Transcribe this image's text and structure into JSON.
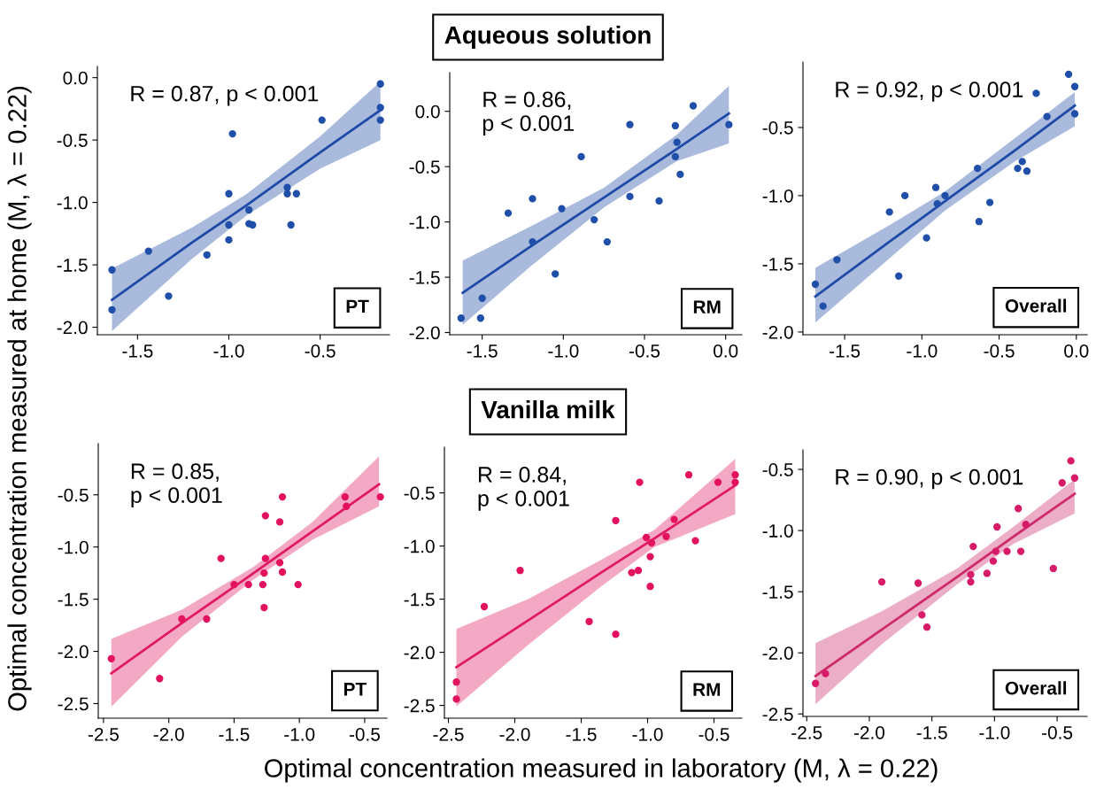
{
  "chart_data": [
    {
      "type": "scatter",
      "ylabel": "Optimal concentration measured at home (M, λ = 0.22)",
      "annotations": [
        "R = 0.87, p < 0.001",
        "PT"
      ],
      "grid": false,
      "legend": false,
      "xlim": [
        -1.72,
        -0.12
      ],
      "xticks": [
        {
          "value": -1.5,
          "label": "-1.5"
        },
        {
          "value": -1.0,
          "label": "-1.0"
        },
        {
          "value": -0.5,
          "label": "-0.5"
        }
      ],
      "ylim": [
        -2.06,
        0.09
      ],
      "yticks": [
        {
          "value": -2.0,
          "label": "-2.0"
        },
        {
          "value": -1.5,
          "label": "-1.5"
        },
        {
          "value": -1.0,
          "label": "-1.0"
        },
        {
          "value": -0.5,
          "label": "-0.5"
        },
        {
          "value": 0.0,
          "label": "0.0"
        }
      ],
      "series": [
        {
          "marker": "circle",
          "color": "#1f4fa8",
          "x": [
            -1.64,
            -1.64,
            -1.44,
            -1.33,
            -1.12,
            -1.0,
            -1.0,
            -1.0,
            -0.98,
            -0.89,
            -0.89,
            -0.87,
            -0.68,
            -0.68,
            -0.66,
            -0.63,
            -0.49,
            -0.17,
            -0.17,
            -0.17
          ],
          "values": [
            -1.54,
            -1.86,
            -1.39,
            -1.75,
            -1.42,
            -0.93,
            -1.18,
            -1.3,
            -0.45,
            -1.06,
            -1.17,
            -1.18,
            -0.88,
            -0.93,
            -1.18,
            -0.93,
            -0.34,
            -0.05,
            -0.24,
            -0.34
          ]
        },
        {
          "type": "line",
          "color": "#1d4aa6",
          "x": [
            -1.64,
            -1.2,
            -0.9,
            -0.5,
            -0.17
          ],
          "values": [
            -1.78,
            -1.32,
            -1.02,
            -0.6,
            -0.26
          ],
          "lower": [
            -2.03,
            -1.45,
            -1.1,
            -0.73,
            -0.5
          ],
          "upper": [
            -1.53,
            -1.2,
            -0.93,
            -0.47,
            -0.03
          ]
        }
      ]
    },
    {
      "type": "scatter",
      "title": "Aqueous solution",
      "annotations": [
        "R = 0.86,\np < 0.001",
        "RM"
      ],
      "grid": false,
      "legend": false,
      "xlim": [
        -1.7,
        0.1
      ],
      "xticks": [
        {
          "value": -1.5,
          "label": "-1.5"
        },
        {
          "value": -1.0,
          "label": "-1.0"
        },
        {
          "value": -0.5,
          "label": "-0.5"
        },
        {
          "value": 0.0,
          "label": "0.0"
        }
      ],
      "ylim": [
        -2.02,
        0.35
      ],
      "yticks": [
        {
          "value": -2.0,
          "label": "-2.0"
        },
        {
          "value": -1.5,
          "label": "-1.5"
        },
        {
          "value": -1.0,
          "label": "-1.0"
        },
        {
          "value": -0.5,
          "label": "-0.5"
        },
        {
          "value": 0.0,
          "label": "0.0"
        }
      ],
      "series": [
        {
          "marker": "circle",
          "color": "#1f4fa8",
          "x": [
            -1.63,
            -1.51,
            -1.5,
            -1.34,
            -1.19,
            -1.19,
            -1.05,
            -1.01,
            -0.89,
            -0.81,
            -0.73,
            -0.59,
            -0.59,
            -0.41,
            -0.31,
            -0.31,
            -0.3,
            -0.28,
            -0.2,
            0.02
          ],
          "values": [
            -1.87,
            -1.87,
            -1.69,
            -0.92,
            -0.79,
            -1.18,
            -1.47,
            -0.88,
            -0.41,
            -0.98,
            -1.18,
            -0.12,
            -0.77,
            -0.81,
            -0.41,
            -0.13,
            -0.28,
            -0.57,
            0.05,
            -0.12
          ]
        },
        {
          "type": "line",
          "color": "#1d4aa6",
          "x": [
            -1.62,
            -1.2,
            -0.75,
            -0.3,
            0.02
          ],
          "values": [
            -1.64,
            -1.22,
            -0.78,
            -0.34,
            -0.02
          ],
          "lower": [
            -1.93,
            -1.4,
            -0.87,
            -0.45,
            -0.29
          ],
          "upper": [
            -1.35,
            -1.04,
            -0.69,
            -0.21,
            0.23
          ]
        }
      ]
    },
    {
      "type": "scatter",
      "annotations": [
        "R = 0.92, p < 0.001",
        "Overall"
      ],
      "grid": false,
      "legend": false,
      "xlim": [
        -1.77,
        0.07
      ],
      "xticks": [
        {
          "value": -1.5,
          "label": "-1.5"
        },
        {
          "value": -1.0,
          "label": "-1.0"
        },
        {
          "value": -0.5,
          "label": "-0.5"
        },
        {
          "value": 0.0,
          "label": "0.0"
        }
      ],
      "ylim": [
        -2.02,
        -0.02
      ],
      "yticks": [
        {
          "value": -2.0,
          "label": "-2.0"
        },
        {
          "value": -1.5,
          "label": "-1.5"
        },
        {
          "value": -1.0,
          "label": "-1.0"
        },
        {
          "value": -0.5,
          "label": "-0.5"
        }
      ],
      "series": [
        {
          "marker": "circle",
          "color": "#1f4fa8",
          "x": [
            -1.69,
            -1.64,
            -1.55,
            -1.21,
            -1.15,
            -1.11,
            -0.97,
            -0.91,
            -0.9,
            -0.85,
            -0.64,
            -0.63,
            -0.56,
            -0.38,
            -0.35,
            -0.32,
            -0.26,
            -0.19,
            -0.05,
            -0.01,
            -0.01
          ],
          "values": [
            -1.65,
            -1.81,
            -1.47,
            -1.12,
            -1.59,
            -1.0,
            -1.31,
            -0.94,
            -1.06,
            -1.0,
            -0.8,
            -1.19,
            -1.05,
            -0.8,
            -0.75,
            -0.82,
            -0.25,
            -0.42,
            -0.11,
            -0.2,
            -0.4
          ]
        },
        {
          "type": "line",
          "color": "#1d4aa6",
          "x": [
            -1.69,
            -1.2,
            -0.85,
            -0.4,
            -0.01
          ],
          "values": [
            -1.74,
            -1.33,
            -1.04,
            -0.67,
            -0.34
          ],
          "lower": [
            -1.93,
            -1.45,
            -1.11,
            -0.75,
            -0.49
          ],
          "upper": [
            -1.53,
            -1.21,
            -0.97,
            -0.58,
            -0.24
          ]
        }
      ]
    },
    {
      "type": "scatter",
      "annotations": [
        "R = 0.85,\np < 0.001",
        "PT"
      ],
      "grid": false,
      "legend": false,
      "xlim": [
        -2.54,
        -0.33
      ],
      "xticks": [
        {
          "value": -2.5,
          "label": "-2.5"
        },
        {
          "value": -2.0,
          "label": "-2.0"
        },
        {
          "value": -1.5,
          "label": "-1.5"
        },
        {
          "value": -1.0,
          "label": "-1.0"
        },
        {
          "value": -0.5,
          "label": "-0.5"
        }
      ],
      "ylim": [
        -2.64,
        -0.01
      ],
      "yticks": [
        {
          "value": -2.5,
          "label": "-2.5"
        },
        {
          "value": -2.0,
          "label": "-2.0"
        },
        {
          "value": -1.5,
          "label": "-1.5"
        },
        {
          "value": -1.0,
          "label": "-1.0"
        },
        {
          "value": -0.5,
          "label": "-0.5"
        }
      ],
      "series": [
        {
          "marker": "circle",
          "color": "#e3125f",
          "x": [
            -2.44,
            -2.07,
            -1.9,
            -1.71,
            -1.6,
            -1.5,
            -1.39,
            -1.28,
            -1.27,
            -1.27,
            -1.26,
            -1.26,
            -1.15,
            -1.15,
            -1.13,
            -1.13,
            -1.01,
            -0.65,
            -0.64,
            -0.38
          ],
          "values": [
            -2.07,
            -2.26,
            -1.69,
            -1.69,
            -1.11,
            -1.36,
            -1.36,
            -1.36,
            -1.58,
            -1.25,
            -1.11,
            -0.7,
            -1.15,
            -0.76,
            -0.52,
            -1.24,
            -1.36,
            -0.52,
            -0.61,
            -0.52
          ]
        },
        {
          "type": "line",
          "color": "#e01a62",
          "x": [
            -2.44,
            -1.9,
            -1.35,
            -0.9,
            -0.39
          ],
          "values": [
            -2.21,
            -1.73,
            -1.25,
            -0.85,
            -0.4
          ],
          "lower": [
            -2.53,
            -1.86,
            -1.31,
            -0.93,
            -0.61
          ],
          "upper": [
            -1.88,
            -1.6,
            -1.19,
            -0.76,
            -0.13
          ]
        }
      ]
    },
    {
      "type": "scatter",
      "title": "Vanilla milk",
      "xlabel": "Optimal concentration measured in laboratory (M, λ = 0.22)",
      "annotations": [
        "R = 0.84,\np < 0.001",
        "RM"
      ],
      "grid": false,
      "legend": false,
      "xlim": [
        -2.53,
        -0.29
      ],
      "xticks": [
        {
          "value": -2.5,
          "label": "-2.5"
        },
        {
          "value": -2.0,
          "label": "-2.0"
        },
        {
          "value": -1.5,
          "label": "-1.5"
        },
        {
          "value": -1.0,
          "label": "-1.0"
        },
        {
          "value": -0.5,
          "label": "-0.5"
        }
      ],
      "ylim": [
        -2.62,
        -0.07
      ],
      "yticks": [
        {
          "value": -2.5,
          "label": "-2.5"
        },
        {
          "value": -2.0,
          "label": "-2.0"
        },
        {
          "value": -1.5,
          "label": "-1.5"
        },
        {
          "value": -1.0,
          "label": "-1.0"
        },
        {
          "value": -0.5,
          "label": "-0.5"
        }
      ],
      "series": [
        {
          "marker": "circle",
          "color": "#e3125f",
          "x": [
            -2.44,
            -2.44,
            -2.23,
            -1.96,
            -1.44,
            -1.24,
            -1.24,
            -1.12,
            -1.07,
            -1.06,
            -1.01,
            -0.98,
            -0.98,
            -0.97,
            -0.86,
            -0.8,
            -0.69,
            -0.64,
            -0.47,
            -0.34,
            -0.34
          ],
          "values": [
            -2.28,
            -2.44,
            -1.57,
            -1.23,
            -1.71,
            -0.76,
            -1.83,
            -1.25,
            -1.23,
            -0.4,
            -0.92,
            -1.1,
            -1.38,
            -0.97,
            -0.91,
            -0.75,
            -0.33,
            -0.95,
            -0.4,
            -0.33,
            -0.4
          ]
        },
        {
          "type": "line",
          "color": "#e01a62",
          "x": [
            -2.44,
            -1.9,
            -1.35,
            -0.95,
            -0.34
          ],
          "values": [
            -2.14,
            -1.7,
            -1.25,
            -0.93,
            -0.43
          ],
          "lower": [
            -2.51,
            -1.93,
            -1.38,
            -1.01,
            -0.7
          ],
          "upper": [
            -1.78,
            -1.5,
            -1.13,
            -0.85,
            -0.18
          ]
        }
      ]
    },
    {
      "type": "scatter",
      "annotations": [
        "R = 0.90, p < 0.001",
        "Overall"
      ],
      "grid": false,
      "legend": false,
      "xlim": [
        -2.53,
        -0.26
      ],
      "xticks": [
        {
          "value": -2.5,
          "label": "-2.5"
        },
        {
          "value": -2.0,
          "label": "-2.0"
        },
        {
          "value": -1.5,
          "label": "-1.5"
        },
        {
          "value": -1.0,
          "label": "-1.0"
        },
        {
          "value": -0.5,
          "label": "-0.5"
        }
      ],
      "ylim": [
        -2.52,
        -0.34
      ],
      "yticks": [
        {
          "value": -2.5,
          "label": "-2.5"
        },
        {
          "value": -2.0,
          "label": "-2.0"
        },
        {
          "value": -1.5,
          "label": "-1.5"
        },
        {
          "value": -1.0,
          "label": "-1.0"
        },
        {
          "value": -0.5,
          "label": "-0.5"
        }
      ],
      "series": [
        {
          "marker": "circle",
          "color": "#d81b68",
          "x": [
            -2.43,
            -2.35,
            -1.9,
            -1.61,
            -1.58,
            -1.54,
            -1.19,
            -1.19,
            -1.17,
            -1.06,
            -1.01,
            -0.99,
            -0.98,
            -0.9,
            -0.81,
            -0.79,
            -0.75,
            -0.53,
            -0.46,
            -0.39,
            -0.36
          ],
          "values": [
            -2.25,
            -2.17,
            -1.42,
            -1.43,
            -1.69,
            -1.79,
            -1.42,
            -1.36,
            -1.13,
            -1.35,
            -1.25,
            -1.17,
            -0.97,
            -1.17,
            -0.82,
            -1.17,
            -0.95,
            -1.31,
            -0.61,
            -0.43,
            -0.57
          ]
        },
        {
          "type": "line",
          "color": "#cc2a6a",
          "x": [
            -2.43,
            -1.9,
            -1.3,
            -0.85,
            -0.36
          ],
          "values": [
            -2.19,
            -1.81,
            -1.38,
            -1.05,
            -0.7
          ],
          "lower": [
            -2.42,
            -1.93,
            -1.44,
            -1.11,
            -0.86
          ],
          "upper": [
            -1.92,
            -1.66,
            -1.31,
            -0.97,
            -0.58
          ]
        }
      ]
    }
  ]
}
